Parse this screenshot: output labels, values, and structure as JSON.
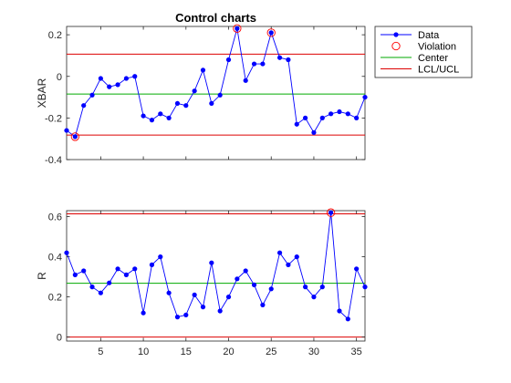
{
  "chart_data": [
    {
      "type": "line",
      "title": "Control charts",
      "xlabel": "",
      "ylabel": "XBAR",
      "xlim": [
        1,
        36
      ],
      "ylim": [
        -0.4,
        0.24
      ],
      "xticks": [
        5,
        10,
        15,
        20,
        25,
        30,
        35
      ],
      "xtick_labels_visible": false,
      "yticks": [
        -0.4,
        -0.2,
        0,
        0.2
      ],
      "ytick_labels": [
        "-0.4",
        "-0.2",
        "0",
        "0.2"
      ],
      "x": [
        1,
        2,
        3,
        4,
        5,
        6,
        7,
        8,
        9,
        10,
        11,
        12,
        13,
        14,
        15,
        16,
        17,
        18,
        19,
        20,
        21,
        22,
        23,
        24,
        25,
        26,
        27,
        28,
        29,
        30,
        31,
        32,
        33,
        34,
        35,
        36
      ],
      "series": [
        {
          "name": "Data",
          "color": "#0000ff",
          "values": [
            -0.26,
            -0.29,
            -0.14,
            -0.09,
            -0.01,
            -0.05,
            -0.04,
            -0.01,
            0.0,
            -0.19,
            -0.21,
            -0.18,
            -0.2,
            -0.13,
            -0.14,
            -0.07,
            0.03,
            -0.13,
            -0.09,
            0.08,
            0.23,
            -0.02,
            0.06,
            0.06,
            0.21,
            0.09,
            0.08,
            -0.23,
            -0.2,
            -0.27,
            -0.2,
            -0.18,
            -0.17,
            -0.18,
            -0.2,
            -0.1
          ]
        }
      ],
      "violations_x": [
        2,
        21,
        25
      ],
      "center": -0.085,
      "lcl": -0.282,
      "ucl": 0.107,
      "center_color": "#00aa00",
      "limit_color": "#dd0000",
      "grid": false
    },
    {
      "type": "line",
      "title": "",
      "xlabel": "",
      "ylabel": "R",
      "xlim": [
        1,
        36
      ],
      "ylim": [
        -0.02,
        0.63
      ],
      "xticks": [
        5,
        10,
        15,
        20,
        25,
        30,
        35
      ],
      "xtick_labels": [
        "5",
        "10",
        "15",
        "20",
        "25",
        "30",
        "35"
      ],
      "yticks": [
        0,
        0.2,
        0.4,
        0.6
      ],
      "ytick_labels": [
        "0",
        "0.2",
        "0.4",
        "0.6"
      ],
      "x": [
        1,
        2,
        3,
        4,
        5,
        6,
        7,
        8,
        9,
        10,
        11,
        12,
        13,
        14,
        15,
        16,
        17,
        18,
        19,
        20,
        21,
        22,
        23,
        24,
        25,
        26,
        27,
        28,
        29,
        30,
        31,
        32,
        33,
        34,
        35,
        36
      ],
      "series": [
        {
          "name": "Data",
          "color": "#0000ff",
          "values": [
            0.42,
            0.31,
            0.33,
            0.25,
            0.22,
            0.27,
            0.34,
            0.31,
            0.34,
            0.12,
            0.36,
            0.4,
            0.22,
            0.1,
            0.11,
            0.21,
            0.15,
            0.37,
            0.13,
            0.2,
            0.29,
            0.33,
            0.26,
            0.16,
            0.24,
            0.42,
            0.36,
            0.4,
            0.25,
            0.2,
            0.25,
            0.62,
            0.13,
            0.09,
            0.34,
            0.25
          ]
        }
      ],
      "violations_x": [
        32
      ],
      "center": 0.268,
      "lcl": 0.0,
      "ucl": 0.614,
      "center_color": "#00aa00",
      "limit_color": "#dd0000",
      "grid": false
    }
  ],
  "legend": {
    "placement": "top-right outside",
    "items": [
      {
        "label": "Data",
        "marker": "line-dot",
        "color": "#0000ff"
      },
      {
        "label": "Violation",
        "marker": "circle",
        "color": "#ff0000"
      },
      {
        "label": "Center",
        "marker": "line",
        "color": "#00aa00"
      },
      {
        "label": "LCL/UCL",
        "marker": "line",
        "color": "#dd0000"
      }
    ]
  }
}
